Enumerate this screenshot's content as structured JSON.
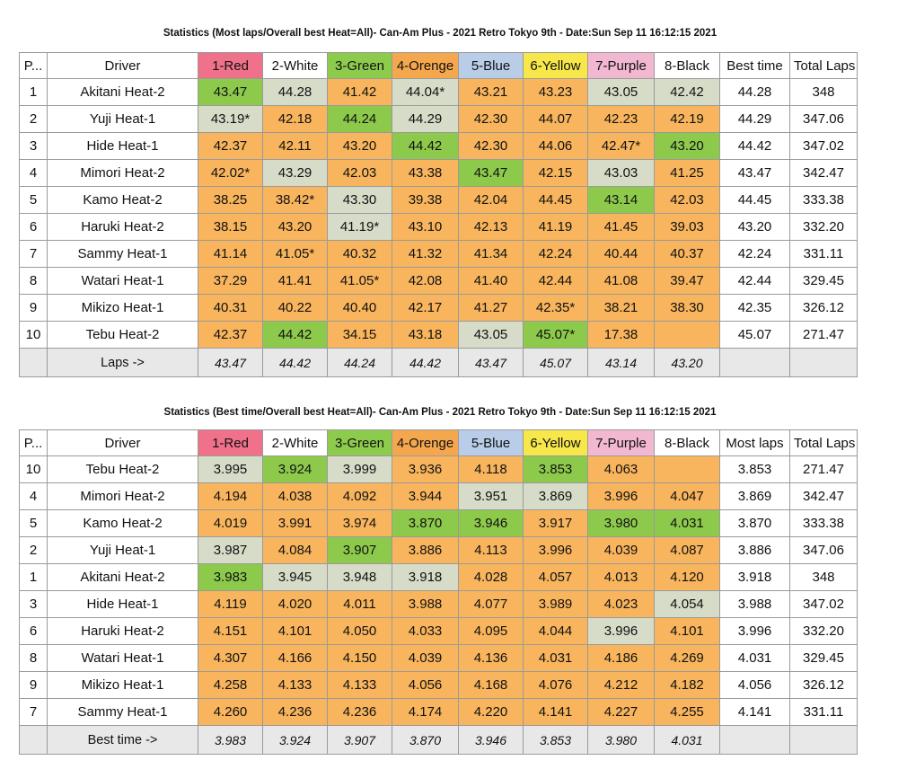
{
  "colors": {
    "orange": "#f8b55d",
    "grey": "#d6dcc8",
    "green": "#8dca4c",
    "red_header": "#f0718a",
    "green_header": "#8dcb4d",
    "orange_header": "#f5a74e",
    "blue_header": "#b9cde8",
    "yellow_header": "#f7e74a",
    "purple_header": "#f2b7d1"
  },
  "table1": {
    "title": "Statistics (Most laps/Overall best Heat=All)- Can-Am Plus - 2021 Retro Tokyo 9th - Date:Sun Sep 11 16:12:15 2021",
    "headers": [
      "P...",
      "Driver",
      "1-Red",
      "2-White",
      "3-Green",
      "4-Orenge",
      "5-Blue",
      "6-Yellow",
      "7-Purple",
      "8-Black",
      "Best time",
      "Total Laps"
    ],
    "rows": [
      {
        "pos": "1",
        "driver": "Akitani Heat-2",
        "lanes": [
          "43.47",
          "44.28",
          "41.42",
          "44.04*",
          "43.21",
          "43.23",
          "43.05",
          "42.42"
        ],
        "best": "44.28",
        "total": "348"
      },
      {
        "pos": "2",
        "driver": "Yuji Heat-1",
        "lanes": [
          "43.19*",
          "42.18",
          "44.24",
          "44.29",
          "42.30",
          "44.07",
          "42.23",
          "42.19"
        ],
        "best": "44.29",
        "total": "347.06"
      },
      {
        "pos": "3",
        "driver": "Hide Heat-1",
        "lanes": [
          "42.37",
          "42.11",
          "43.20",
          "44.42",
          "42.30",
          "44.06",
          "42.47*",
          "43.20"
        ],
        "best": "44.42",
        "total": "347.02"
      },
      {
        "pos": "4",
        "driver": "Mimori Heat-2",
        "lanes": [
          "42.02*",
          "43.29",
          "42.03",
          "43.38",
          "43.47",
          "42.15",
          "43.03",
          "41.25"
        ],
        "best": "43.47",
        "total": "342.47"
      },
      {
        "pos": "5",
        "driver": "Kamo Heat-2",
        "lanes": [
          "38.25",
          "38.42*",
          "43.30",
          "39.38",
          "42.04",
          "44.45",
          "43.14",
          "42.03"
        ],
        "best": "44.45",
        "total": "333.38"
      },
      {
        "pos": "6",
        "driver": "Haruki Heat-2",
        "lanes": [
          "38.15",
          "43.20",
          "41.19*",
          "43.10",
          "42.13",
          "41.19",
          "41.45",
          "39.03"
        ],
        "best": "43.20",
        "total": "332.20"
      },
      {
        "pos": "7",
        "driver": "Sammy Heat-1",
        "lanes": [
          "41.14",
          "41.05*",
          "40.32",
          "41.32",
          "41.34",
          "42.24",
          "40.44",
          "40.37"
        ],
        "best": "42.24",
        "total": "331.11"
      },
      {
        "pos": "8",
        "driver": "Watari Heat-1",
        "lanes": [
          "37.29",
          "41.41",
          "41.05*",
          "42.08",
          "41.40",
          "42.44",
          "41.08",
          "39.47"
        ],
        "best": "42.44",
        "total": "329.45"
      },
      {
        "pos": "9",
        "driver": "Mikizo Heat-1",
        "lanes": [
          "40.31",
          "40.22",
          "40.40",
          "42.17",
          "41.27",
          "42.35*",
          "38.21",
          "38.30"
        ],
        "best": "42.35",
        "total": "326.12"
      },
      {
        "pos": "10",
        "driver": "Tebu Heat-2",
        "lanes": [
          "42.37",
          "44.42",
          "34.15",
          "43.18",
          "43.05",
          "45.07*",
          "17.38",
          ""
        ],
        "best": "45.07",
        "total": "271.47"
      }
    ],
    "footer": {
      "label": "Laps ->",
      "values": [
        "43.47",
        "44.42",
        "44.24",
        "44.42",
        "43.47",
        "45.07",
        "43.14",
        "43.20"
      ]
    }
  },
  "table2": {
    "title": "Statistics (Best time/Overall best Heat=All)- Can-Am Plus - 2021 Retro Tokyo 9th - Date:Sun Sep 11 16:12:15 2021",
    "headers": [
      "P...",
      "Driver",
      "1-Red",
      "2-White",
      "3-Green",
      "4-Orenge",
      "5-Blue",
      "6-Yellow",
      "7-Purple",
      "8-Black",
      "Most laps",
      "Total Laps"
    ],
    "rows": [
      {
        "pos": "10",
        "driver": "Tebu Heat-2",
        "lanes": [
          "3.995",
          "3.924",
          "3.999",
          "3.936",
          "4.118",
          "3.853",
          "4.063",
          ""
        ],
        "best": "3.853",
        "total": "271.47"
      },
      {
        "pos": "4",
        "driver": "Mimori Heat-2",
        "lanes": [
          "4.194",
          "4.038",
          "4.092",
          "3.944",
          "3.951",
          "3.869",
          "3.996",
          "4.047"
        ],
        "best": "3.869",
        "total": "342.47"
      },
      {
        "pos": "5",
        "driver": "Kamo Heat-2",
        "lanes": [
          "4.019",
          "3.991",
          "3.974",
          "3.870",
          "3.946",
          "3.917",
          "3.980",
          "4.031"
        ],
        "best": "3.870",
        "total": "333.38"
      },
      {
        "pos": "2",
        "driver": "Yuji Heat-1",
        "lanes": [
          "3.987",
          "4.084",
          "3.907",
          "3.886",
          "4.113",
          "3.996",
          "4.039",
          "4.087"
        ],
        "best": "3.886",
        "total": "347.06"
      },
      {
        "pos": "1",
        "driver": "Akitani Heat-2",
        "lanes": [
          "3.983",
          "3.945",
          "3.948",
          "3.918",
          "4.028",
          "4.057",
          "4.013",
          "4.120"
        ],
        "best": "3.918",
        "total": "348"
      },
      {
        "pos": "3",
        "driver": "Hide Heat-1",
        "lanes": [
          "4.119",
          "4.020",
          "4.011",
          "3.988",
          "4.077",
          "3.989",
          "4.023",
          "4.054"
        ],
        "best": "3.988",
        "total": "347.02"
      },
      {
        "pos": "6",
        "driver": "Haruki Heat-2",
        "lanes": [
          "4.151",
          "4.101",
          "4.050",
          "4.033",
          "4.095",
          "4.044",
          "3.996",
          "4.101"
        ],
        "best": "3.996",
        "total": "332.20"
      },
      {
        "pos": "8",
        "driver": "Watari Heat-1",
        "lanes": [
          "4.307",
          "4.166",
          "4.150",
          "4.039",
          "4.136",
          "4.031",
          "4.186",
          "4.269"
        ],
        "best": "4.031",
        "total": "329.45"
      },
      {
        "pos": "9",
        "driver": "Mikizo Heat-1",
        "lanes": [
          "4.258",
          "4.133",
          "4.133",
          "4.056",
          "4.168",
          "4.076",
          "4.212",
          "4.182"
        ],
        "best": "4.056",
        "total": "326.12"
      },
      {
        "pos": "7",
        "driver": "Sammy Heat-1",
        "lanes": [
          "4.260",
          "4.236",
          "4.236",
          "4.174",
          "4.220",
          "4.141",
          "4.227",
          "4.255"
        ],
        "best": "4.141",
        "total": "331.11"
      }
    ],
    "footer": {
      "label": "Best time ->",
      "values": [
        "3.983",
        "3.924",
        "3.907",
        "3.870",
        "3.946",
        "3.853",
        "3.980",
        "4.031"
      ]
    }
  }
}
